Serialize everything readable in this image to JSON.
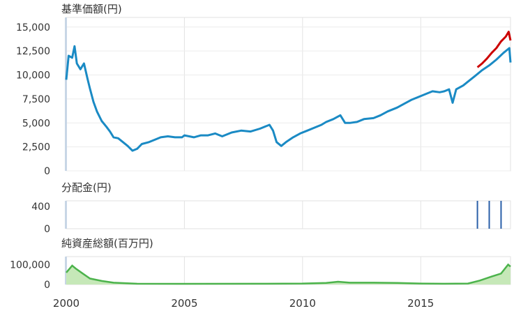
{
  "chart_data": {
    "type": "line",
    "x_range": [
      2000,
      2018.8
    ],
    "x_ticks": [
      2000,
      2005,
      2010,
      2015
    ],
    "x_tick_labels": [
      "2000",
      "2005",
      "2010",
      "2015"
    ],
    "grid": true,
    "panels": [
      {
        "id": "nav",
        "type": "line",
        "title": "基準価額(円)",
        "ylim": [
          0,
          16000
        ],
        "y_ticks": [
          0,
          2500,
          5000,
          7500,
          10000,
          12500,
          15000
        ],
        "y_tick_labels": [
          "0",
          "2,500",
          "5,000",
          "7,500",
          "10,000",
          "12,500",
          "15,000"
        ],
        "series": [
          {
            "color": "#1a8ac4",
            "points": [
              [
                2000.0,
                9500
              ],
              [
                2000.1,
                12000
              ],
              [
                2000.25,
                11800
              ],
              [
                2000.35,
                13000
              ],
              [
                2000.45,
                11200
              ],
              [
                2000.6,
                10600
              ],
              [
                2000.75,
                11200
              ],
              [
                2000.9,
                9600
              ],
              [
                2001.0,
                8600
              ],
              [
                2001.15,
                7200
              ],
              [
                2001.3,
                6200
              ],
              [
                2001.5,
                5200
              ],
              [
                2001.7,
                4600
              ],
              [
                2001.85,
                4100
              ],
              [
                2002.0,
                3500
              ],
              [
                2002.2,
                3400
              ],
              [
                2002.4,
                3000
              ],
              [
                2002.6,
                2600
              ],
              [
                2002.8,
                2100
              ],
              [
                2003.0,
                2300
              ],
              [
                2003.2,
                2800
              ],
              [
                2003.5,
                3000
              ],
              [
                2003.8,
                3300
              ],
              [
                2004.0,
                3500
              ],
              [
                2004.3,
                3600
              ],
              [
                2004.6,
                3500
              ],
              [
                2004.9,
                3500
              ],
              [
                2005.0,
                3700
              ],
              [
                2005.4,
                3500
              ],
              [
                2005.7,
                3700
              ],
              [
                2006.0,
                3700
              ],
              [
                2006.3,
                3900
              ],
              [
                2006.6,
                3600
              ],
              [
                2007.0,
                4000
              ],
              [
                2007.4,
                4200
              ],
              [
                2007.8,
                4100
              ],
              [
                2008.2,
                4400
              ],
              [
                2008.6,
                4800
              ],
              [
                2008.75,
                4200
              ],
              [
                2008.9,
                3000
              ],
              [
                2009.1,
                2600
              ],
              [
                2009.3,
                3000
              ],
              [
                2009.6,
                3500
              ],
              [
                2009.9,
                3900
              ],
              [
                2010.2,
                4200
              ],
              [
                2010.5,
                4500
              ],
              [
                2010.8,
                4800
              ],
              [
                2011.0,
                5100
              ],
              [
                2011.3,
                5400
              ],
              [
                2011.6,
                5800
              ],
              [
                2011.8,
                5000
              ],
              [
                2012.0,
                5000
              ],
              [
                2012.3,
                5100
              ],
              [
                2012.6,
                5400
              ],
              [
                2013.0,
                5500
              ],
              [
                2013.3,
                5800
              ],
              [
                2013.6,
                6200
              ],
              [
                2014.0,
                6600
              ],
              [
                2014.3,
                7000
              ],
              [
                2014.6,
                7400
              ],
              [
                2014.9,
                7700
              ],
              [
                2015.2,
                8000
              ],
              [
                2015.5,
                8300
              ],
              [
                2015.8,
                8200
              ],
              [
                2016.0,
                8300
              ],
              [
                2016.2,
                8500
              ],
              [
                2016.35,
                7100
              ],
              [
                2016.5,
                8500
              ],
              [
                2016.8,
                8900
              ],
              [
                2017.0,
                9300
              ],
              [
                2017.3,
                9900
              ],
              [
                2017.6,
                10500
              ],
              [
                2017.9,
                11000
              ],
              [
                2018.2,
                11600
              ],
              [
                2018.5,
                12300
              ],
              [
                2018.75,
                12800
              ],
              [
                2018.8,
                11300
              ]
            ]
          },
          {
            "color": "#cc0000",
            "points": [
              [
                2017.4,
                10800
              ],
              [
                2017.6,
                11200
              ],
              [
                2017.8,
                11700
              ],
              [
                2018.0,
                12300
              ],
              [
                2018.2,
                12800
              ],
              [
                2018.4,
                13500
              ],
              [
                2018.6,
                14000
              ],
              [
                2018.72,
                14500
              ],
              [
                2018.8,
                13600
              ]
            ]
          }
        ]
      },
      {
        "id": "dividend",
        "type": "bar",
        "title": "分配金(円)",
        "ylim": [
          0,
          500
        ],
        "y_ticks": [
          0,
          400
        ],
        "y_tick_labels": [
          "0",
          "400"
        ],
        "series": [
          {
            "color": "#2a5fa8",
            "points": [
              [
                2017.4,
                500
              ],
              [
                2017.9,
                500
              ],
              [
                2018.4,
                500
              ]
            ]
          }
        ]
      },
      {
        "id": "net_assets",
        "type": "area",
        "title": "純資産総額(百万円)",
        "ylim": [
          0,
          140000
        ],
        "y_ticks": [
          0,
          100000
        ],
        "y_tick_labels": [
          "0",
          "100,000"
        ],
        "series": [
          {
            "color": "#4cb34c",
            "fill": "#c6e8b8",
            "points": [
              [
                2000.0,
                60000
              ],
              [
                2000.25,
                95000
              ],
              [
                2000.4,
                80000
              ],
              [
                2000.7,
                55000
              ],
              [
                2001.0,
                30000
              ],
              [
                2001.5,
                18000
              ],
              [
                2002.0,
                9000
              ],
              [
                2003.0,
                4000
              ],
              [
                2005.0,
                3500
              ],
              [
                2008.0,
                4000
              ],
              [
                2010.0,
                5000
              ],
              [
                2011.0,
                8000
              ],
              [
                2011.5,
                14000
              ],
              [
                2012.0,
                9000
              ],
              [
                2013.0,
                9000
              ],
              [
                2014.0,
                8000
              ],
              [
                2015.0,
                5000
              ],
              [
                2016.0,
                4000
              ],
              [
                2017.0,
                5000
              ],
              [
                2017.5,
                20000
              ],
              [
                2018.0,
                40000
              ],
              [
                2018.4,
                55000
              ],
              [
                2018.7,
                100000
              ],
              [
                2018.8,
                90000
              ]
            ]
          }
        ]
      }
    ]
  }
}
